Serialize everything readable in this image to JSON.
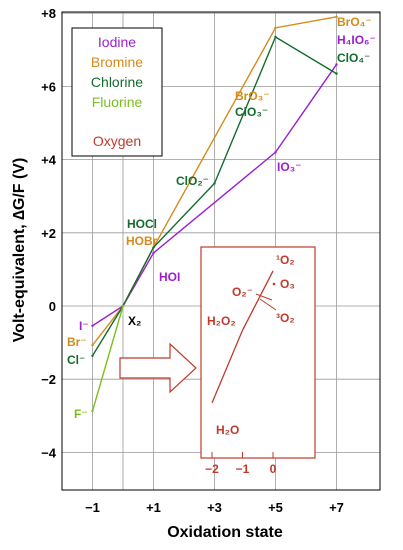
{
  "chart_data": {
    "type": "line",
    "xlabel": "Oxidation state",
    "ylabel": "Volt-equivalent, ∆G/F (V)",
    "xlim": [
      -2,
      8
    ],
    "ylim": [
      -5,
      8
    ],
    "x_ticks": [
      "−1",
      "+1",
      "+3",
      "+5",
      "+7"
    ],
    "x_tick_values": [
      -1,
      1,
      3,
      5,
      7
    ],
    "y_ticks": [
      "−4",
      "−2",
      "0",
      "+2",
      "+4",
      "+6",
      "+8"
    ],
    "y_tick_values": [
      -4,
      -2,
      0,
      2,
      4,
      6,
      8
    ],
    "legend": {
      "placement": "top-left",
      "entries": [
        {
          "label": "Iodine",
          "color": "#9b1fd1"
        },
        {
          "label": "Bromine",
          "color": "#d68a1c"
        },
        {
          "label": "Chlorine",
          "color": "#156b2e"
        },
        {
          "label": "Fluorine",
          "color": "#7bbf1e"
        },
        {
          "label": "Oxygen",
          "color": "#c0392b"
        }
      ]
    },
    "series": [
      {
        "name": "Iodine",
        "color": "#9b1fd1",
        "points": [
          [
            -1,
            -0.54
          ],
          [
            0,
            0
          ],
          [
            1,
            1.45
          ],
          [
            5,
            4.2
          ],
          [
            7,
            6.6
          ]
        ]
      },
      {
        "name": "Bromine",
        "color": "#d68a1c",
        "points": [
          [
            -1,
            -1.07
          ],
          [
            0,
            0
          ],
          [
            1,
            1.6
          ],
          [
            5,
            7.6
          ],
          [
            7,
            7.9
          ]
        ]
      },
      {
        "name": "Chlorine",
        "color": "#156b2e",
        "points": [
          [
            -1,
            -1.36
          ],
          [
            0,
            0
          ],
          [
            1,
            1.6
          ],
          [
            3,
            3.35
          ],
          [
            5,
            7.35
          ],
          [
            7,
            6.35
          ]
        ]
      },
      {
        "name": "Fluorine",
        "color": "#7bbf1e",
        "points": [
          [
            -1,
            -2.87
          ],
          [
            0,
            0
          ]
        ]
      }
    ],
    "species_labels": [
      {
        "text": "I⁻",
        "color": "#9b1fd1"
      },
      {
        "text": "Br⁻",
        "color": "#d68a1c"
      },
      {
        "text": "Cl⁻",
        "color": "#156b2e"
      },
      {
        "text": "F⁻",
        "color": "#7bbf1e"
      },
      {
        "text": "X₂",
        "color": "#000000"
      },
      {
        "text": "HOI",
        "color": "#9b1fd1"
      },
      {
        "text": "HOBr",
        "color": "#d68a1c"
      },
      {
        "text": "HOCl",
        "color": "#156b2e"
      },
      {
        "text": "ClO₂⁻",
        "color": "#156b2e"
      },
      {
        "text": "IO₃⁻",
        "color": "#9b1fd1"
      },
      {
        "text": "BrO₃⁻",
        "color": "#d68a1c"
      },
      {
        "text": "ClO₃⁻",
        "color": "#156b2e"
      },
      {
        "text": "BrO₄⁻",
        "color": "#d68a1c"
      },
      {
        "text": "H₄IO₆⁻",
        "color": "#9b1fd1"
      },
      {
        "text": "ClO₄⁻",
        "color": "#156b2e"
      }
    ],
    "inset": {
      "color": "#c0392b",
      "x_ticks": [
        "−2",
        "−1",
        "0"
      ],
      "x_tick_values": [
        -2,
        -1,
        0
      ],
      "series": {
        "name": "Oxygen",
        "points": [
          [
            -2,
            -3.3
          ],
          [
            -1,
            -1.1
          ],
          [
            0,
            0.7
          ]
        ]
      },
      "labels": [
        "¹O₂",
        "O₃",
        "O₂⁻",
        "³O₂",
        "H₂O₂",
        "H₂O"
      ]
    }
  }
}
